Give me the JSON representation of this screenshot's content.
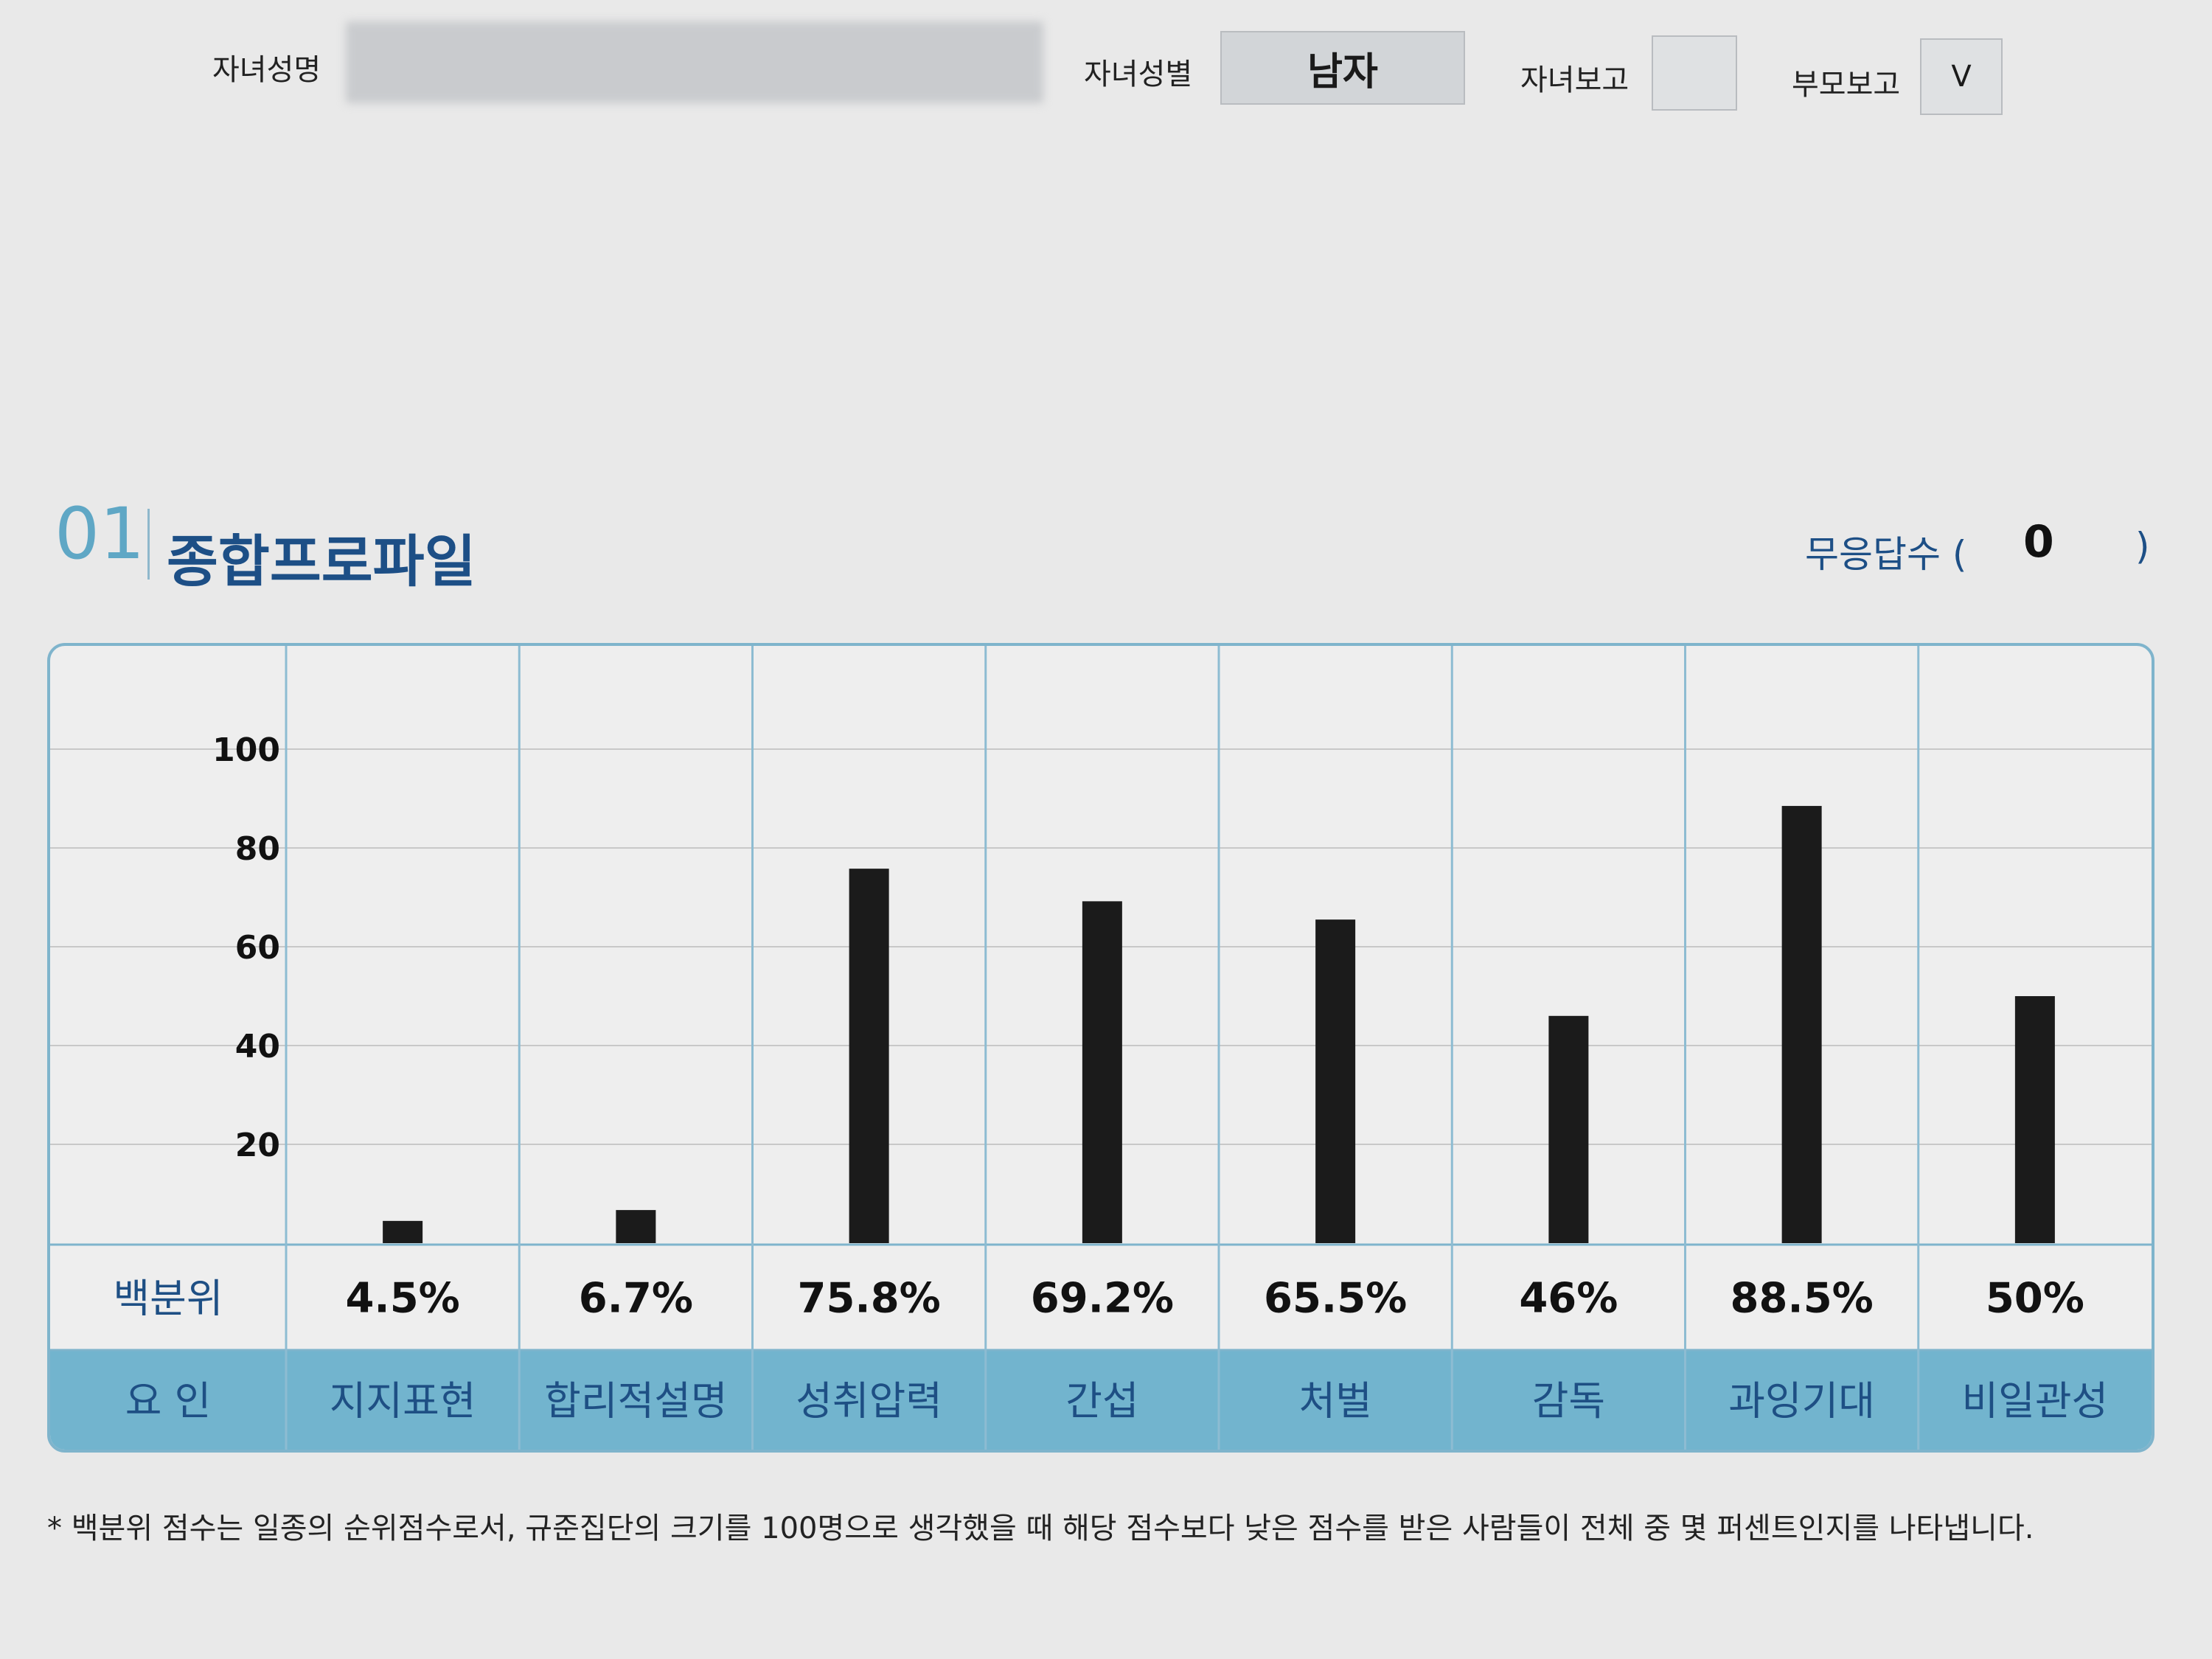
{
  "header": {
    "child_name_label": "자녀성명",
    "child_name_value": "",
    "child_gender_label": "자녀성별",
    "child_gender_value": "남자",
    "child_report_label": "자녀보고",
    "child_report_value": "",
    "parent_report_label": "부모보고",
    "parent_report_value": "V"
  },
  "section": {
    "number": "01",
    "title": "종합프로파일",
    "no_response_label": "무응답수 (",
    "no_response_value": "0",
    "no_response_close": ")"
  },
  "table": {
    "percentile_label": "백분위",
    "factor_label": "요 인"
  },
  "colors": {
    "accent": "#72b4ce",
    "frame": "#7fb4cc",
    "title": "#1d4f86",
    "bar": "#1b1b1b"
  },
  "chart_data": {
    "type": "bar",
    "title": "",
    "xlabel": "",
    "ylabel": "",
    "ylim": [
      0,
      100
    ],
    "yticks": [
      20,
      40,
      60,
      80,
      100
    ],
    "grid": true,
    "categories": [
      "지지표현",
      "합리적설명",
      "성취압력",
      "간섭",
      "처벌",
      "감독",
      "과잉기대",
      "비일관성"
    ],
    "values": [
      4.5,
      6.7,
      75.8,
      69.2,
      65.5,
      46,
      88.5,
      50
    ],
    "value_labels": [
      "4.5%",
      "6.7%",
      "75.8%",
      "69.2%",
      "65.5%",
      "46%",
      "88.5%",
      "50%"
    ]
  },
  "footnote": "* 백분위 점수는 일종의 순위점수로서, 규준집단의 크기를 100명으로 생각했을 때 해당 점수보다 낮은 점수를 받은 사람들이 전체 중 몇 퍼센트인지를 나타냅니다."
}
